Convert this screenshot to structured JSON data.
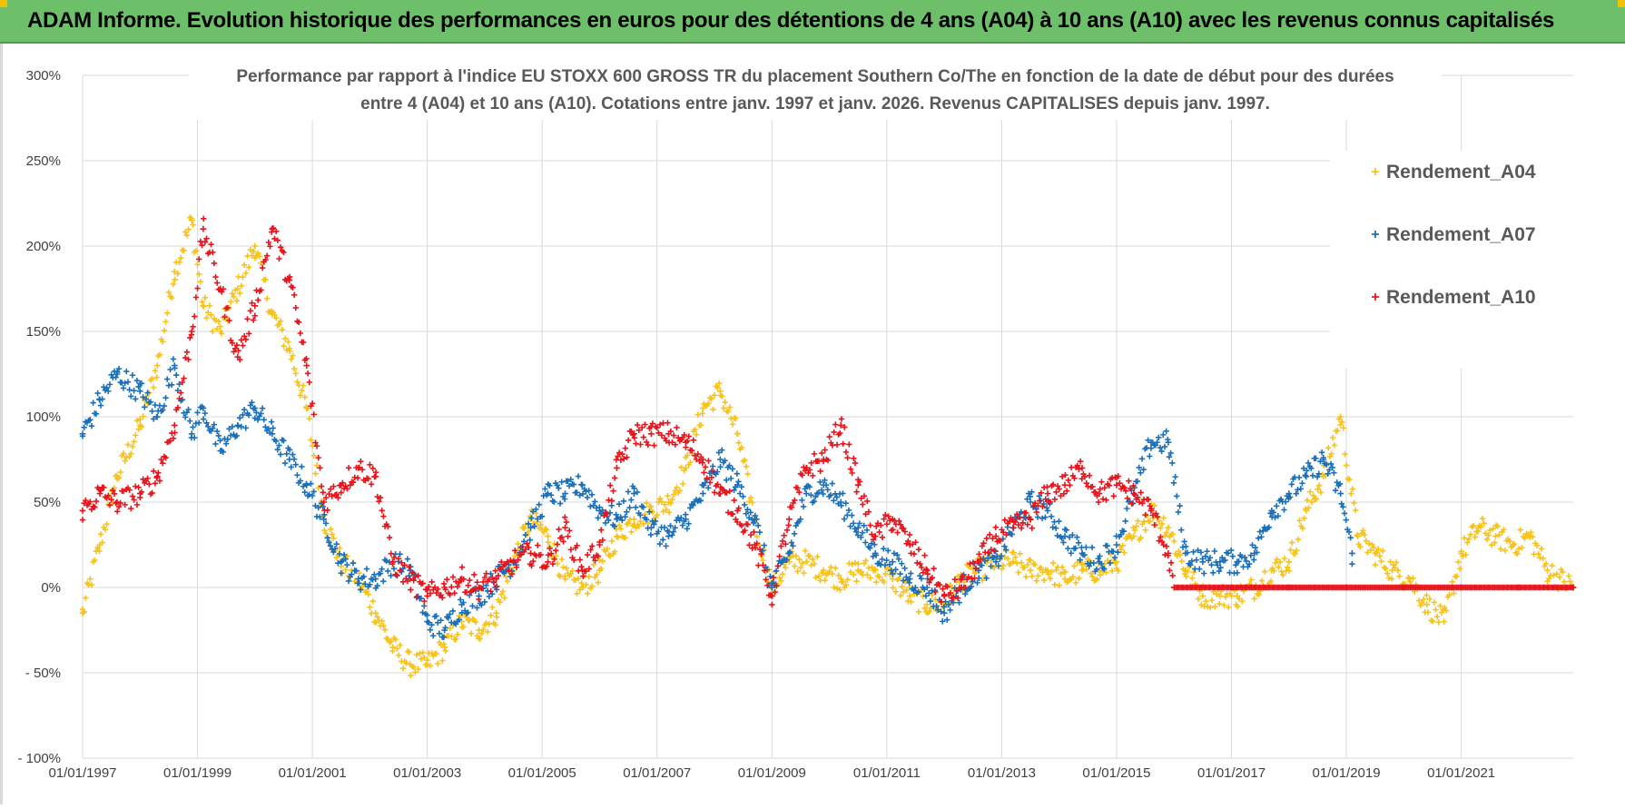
{
  "banner": {
    "title": "ADAM Informe. Evolution historique des performances en euros pour des détentions de 4 ans (A04) à 10 ans (A10) avec les revenus connus capitalisés",
    "color": "#6dbf6a",
    "corner_color": "#f2c200"
  },
  "chart_data": {
    "type": "scatter",
    "title_line1": "Performance par rapport à l'indice EU STOXX 600 GROSS TR  du placement Southern Co/The en fonction de la date de début pour des durées",
    "title_line2": "entre 4 (A04) et 10 ans (A10).  Cotations entre janv. 1997 et janv. 2026. Revenus CAPITALISES  depuis janv. 1997.",
    "xlabel": "",
    "ylabel": "",
    "x_range": [
      1997.0,
      2022.95
    ],
    "ylim": [
      -100,
      300
    ],
    "y_ticks": [
      300,
      250,
      200,
      150,
      100,
      50,
      0,
      -50,
      -100
    ],
    "y_tick_labels": [
      "300%",
      "250%",
      "200%",
      "150%",
      "100%",
      "50%",
      "0%",
      "- 50%",
      "- 100%"
    ],
    "x_ticks": [
      1997,
      1999,
      2001,
      2003,
      2005,
      2007,
      2009,
      2011,
      2013,
      2015,
      2017,
      2019,
      2021
    ],
    "x_tick_labels": [
      "01/01/1997",
      "01/01/1999",
      "01/01/2001",
      "01/01/2003",
      "01/01/2005",
      "01/01/2007",
      "01/01/2009",
      "01/01/2011",
      "01/01/2013",
      "01/01/2015",
      "01/01/2017",
      "01/01/2019",
      "01/01/2021"
    ],
    "grid": true,
    "legend_position": "top-right",
    "marker": "+",
    "series": [
      {
        "name": "Rendement_A04",
        "color": "#f7c21b",
        "x": [
          1997.0,
          1997.3,
          1997.6,
          1998.0,
          1998.3,
          1998.6,
          1998.9,
          1999.1,
          1999.4,
          1999.7,
          2000.0,
          2000.3,
          2000.6,
          2000.9,
          2001.2,
          2001.5,
          2001.8,
          2002.1,
          2002.4,
          2002.7,
          2003.0,
          2003.3,
          2003.6,
          2003.9,
          2004.2,
          2004.5,
          2004.8,
          2005.1,
          2005.4,
          2005.7,
          2006.0,
          2006.3,
          2006.6,
          2006.9,
          2007.2,
          2007.5,
          2007.8,
          2008.1,
          2008.4,
          2008.7,
          2009.0,
          2009.3,
          2009.6,
          2009.9,
          2010.2,
          2010.5,
          2010.8,
          2011.1,
          2011.4,
          2011.7,
          2012.0,
          2012.3,
          2012.6,
          2012.9,
          2013.2,
          2013.5,
          2013.8,
          2014.1,
          2014.4,
          2014.7,
          2015.0,
          2015.3,
          2015.6,
          2015.9,
          2016.2,
          2016.5,
          2016.8,
          2017.1,
          2017.4,
          2017.7,
          2018.0,
          2018.3,
          2018.6,
          2018.9,
          2019.2,
          2019.5,
          2019.8,
          2020.1,
          2020.4,
          2020.7,
          2021.0,
          2021.3,
          2021.6,
          2021.9,
          2022.2,
          2022.5,
          2022.95
        ],
        "y": [
          -15,
          25,
          65,
          95,
          130,
          185,
          215,
          165,
          150,
          175,
          200,
          160,
          140,
          105,
          40,
          15,
          5,
          -15,
          -35,
          -45,
          -45,
          -35,
          -20,
          -25,
          -15,
          15,
          40,
          30,
          5,
          0,
          10,
          30,
          40,
          45,
          50,
          70,
          105,
          115,
          90,
          40,
          0,
          15,
          15,
          10,
          5,
          10,
          10,
          5,
          -5,
          -10,
          -10,
          5,
          10,
          15,
          15,
          10,
          10,
          5,
          10,
          10,
          15,
          30,
          45,
          35,
          10,
          -5,
          -5,
          -5,
          0,
          10,
          15,
          45,
          65,
          100,
          30,
          20,
          10,
          5,
          -10,
          -20,
          20,
          35,
          30,
          25,
          30,
          10,
          0
        ]
      },
      {
        "name": "Rendement_A07",
        "color": "#1a6fba",
        "x": [
          1997.0,
          1997.3,
          1997.6,
          1998.0,
          1998.3,
          1998.6,
          1998.9,
          1999.1,
          1999.4,
          1999.7,
          2000.0,
          2000.3,
          2000.6,
          2000.9,
          2001.2,
          2001.5,
          2001.8,
          2002.1,
          2002.4,
          2002.7,
          2003.0,
          2003.3,
          2003.6,
          2003.9,
          2004.2,
          2004.5,
          2004.8,
          2005.1,
          2005.4,
          2005.7,
          2006.0,
          2006.3,
          2006.6,
          2006.9,
          2007.2,
          2007.5,
          2007.8,
          2008.1,
          2008.4,
          2008.7,
          2009.0,
          2009.3,
          2009.6,
          2009.9,
          2010.2,
          2010.5,
          2010.8,
          2011.1,
          2011.4,
          2011.7,
          2012.0,
          2012.3,
          2012.6,
          2012.9,
          2013.2,
          2013.5,
          2013.8,
          2014.1,
          2014.4,
          2014.7,
          2015.0,
          2015.3,
          2015.6,
          2015.9,
          2016.2,
          2016.5,
          2016.8,
          2017.1,
          2017.4,
          2017.7,
          2018.0,
          2018.3,
          2018.6,
          2018.9,
          2019.1
        ],
        "y": [
          90,
          110,
          125,
          115,
          100,
          130,
          90,
          105,
          80,
          95,
          105,
          90,
          75,
          60,
          40,
          15,
          5,
          5,
          15,
          10,
          -20,
          -25,
          -10,
          -5,
          5,
          15,
          35,
          55,
          55,
          60,
          45,
          40,
          55,
          35,
          30,
          40,
          55,
          75,
          60,
          40,
          0,
          20,
          55,
          60,
          50,
          35,
          20,
          15,
          5,
          0,
          -15,
          0,
          10,
          15,
          35,
          50,
          45,
          30,
          20,
          15,
          25,
          55,
          85,
          85,
          20,
          15,
          15,
          15,
          20,
          45,
          55,
          65,
          75,
          55,
          20
        ]
      },
      {
        "name": "Rendement_A10",
        "color": "#e8141c",
        "x": [
          1997.0,
          1997.3,
          1997.6,
          1998.0,
          1998.3,
          1998.6,
          1998.9,
          1999.1,
          1999.4,
          1999.7,
          2000.0,
          2000.3,
          2000.6,
          2000.9,
          2001.2,
          2001.5,
          2001.8,
          2002.1,
          2002.4,
          2002.7,
          2003.0,
          2003.3,
          2003.6,
          2003.9,
          2004.2,
          2004.5,
          2004.8,
          2005.1,
          2005.4,
          2005.7,
          2006.0,
          2006.3,
          2006.6,
          2006.9,
          2007.2,
          2007.5,
          2007.8,
          2008.1,
          2008.4,
          2008.7,
          2009.0,
          2009.3,
          2009.6,
          2009.9,
          2010.2,
          2010.5,
          2010.8,
          2011.1,
          2011.4,
          2011.7,
          2012.0,
          2012.3,
          2012.6,
          2012.9,
          2013.2,
          2013.5,
          2013.8,
          2014.1,
          2014.4,
          2014.7,
          2015.0,
          2015.3,
          2015.6,
          2015.9,
          2016.0,
          2017.0,
          2018.0,
          2019.0,
          2020.0,
          2021.0,
          2022.0,
          2022.95
        ],
        "y": [
          45,
          55,
          50,
          55,
          65,
          95,
          150,
          210,
          175,
          135,
          165,
          210,
          180,
          130,
          50,
          60,
          70,
          65,
          15,
          5,
          -5,
          0,
          5,
          0,
          5,
          15,
          20,
          15,
          35,
          10,
          25,
          70,
          90,
          90,
          90,
          85,
          75,
          55,
          45,
          25,
          -5,
          40,
          70,
          75,
          95,
          60,
          30,
          40,
          25,
          10,
          -5,
          0,
          15,
          30,
          35,
          40,
          55,
          60,
          70,
          55,
          60,
          55,
          45,
          20,
          0,
          0,
          0,
          0,
          0,
          0,
          0,
          0
        ]
      }
    ]
  }
}
